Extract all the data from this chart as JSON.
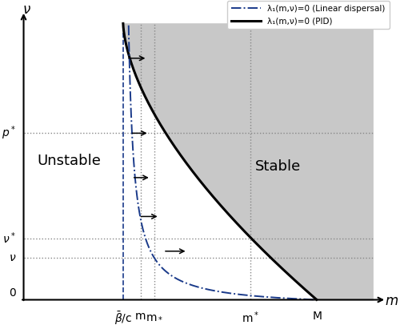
{
  "xlim": [
    0,
    1.0
  ],
  "ylim": [
    0,
    1.0
  ],
  "background_color": "#ffffff",
  "stable_fill_color": "#c8c8c8",
  "beta_bar_c": 0.285,
  "m_val": 0.335,
  "m_star_sub": 0.375,
  "m_star_sup": 0.65,
  "M_val": 0.84,
  "p_star": 0.6,
  "nu_star": 0.22,
  "nu_val": 0.15,
  "linear_label": "λ₁(m,ν)=0 (Linear dispersal)",
  "pid_label": "λ₁(m,ν)=0 (PID)",
  "arrows": [
    [
      0.295,
      0.87,
      0.06
    ],
    [
      0.305,
      0.6,
      0.055
    ],
    [
      0.31,
      0.44,
      0.055
    ],
    [
      0.33,
      0.3,
      0.06
    ],
    [
      0.4,
      0.175,
      0.07
    ]
  ]
}
